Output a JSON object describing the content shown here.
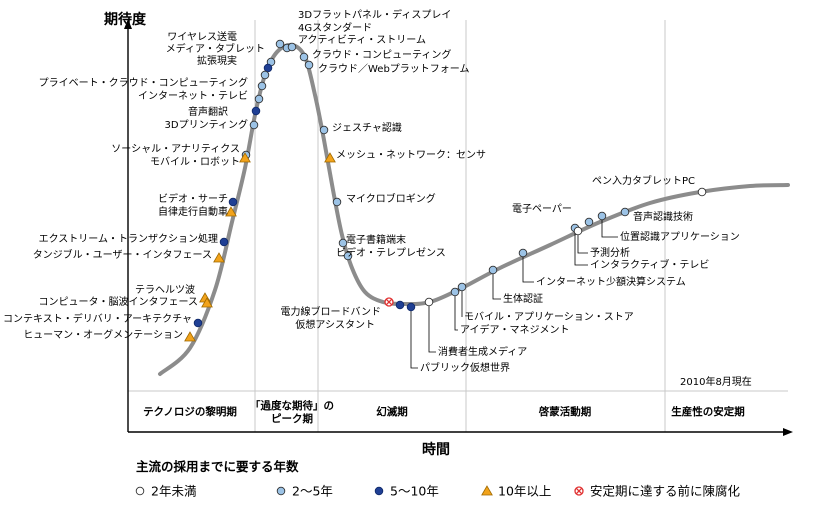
{
  "chart_data": {
    "type": "scatter",
    "ylabel": "期待度",
    "xlabel": "時間",
    "date_note": "2010年8月現在",
    "phases": [
      "テクノロジの黎明期",
      "「過度な期待」の\nピーク期",
      "幻滅期",
      "啓蒙活動期",
      "生産性の安定期"
    ],
    "legend_title": "主流の採用までに要する年数",
    "legend": [
      {
        "key": "lt2",
        "label": "2年未満"
      },
      {
        "key": "y2_5",
        "label": "2〜5年"
      },
      {
        "key": "y5_10",
        "label": "5〜10年"
      },
      {
        "key": "gt10",
        "label": "10年以上"
      },
      {
        "key": "obsolete",
        "label": "安定期に達する前に陳腐化"
      }
    ],
    "colors": {
      "lt2": "#ffffff",
      "y2_5": "#9cc3e6",
      "y5_10": "#1f3f94",
      "gt10": "#f2a31b",
      "obsolete_stroke": "#e03030",
      "curve": "#8c8c8c",
      "axis": "#000000",
      "divider": "#c8c8c8"
    },
    "points": [
      {
        "name": "3Dフラットパネル・ディスプレイ",
        "cat": "y2_5"
      },
      {
        "name": "4Gスタンダード",
        "cat": "y2_5"
      },
      {
        "name": "アクティビティ・ストリーム",
        "cat": "y2_5"
      },
      {
        "name": "クラウド・コンピューティング",
        "cat": "y2_5"
      },
      {
        "name": "クラウド／Webプラットフォーム",
        "cat": "y2_5"
      },
      {
        "name": "ワイヤレス送電",
        "cat": "y2_5"
      },
      {
        "name": "メディア・タブレット",
        "cat": "y5_10"
      },
      {
        "name": "拡張現実",
        "cat": "y2_5"
      },
      {
        "name": "プライベート・クラウド・コンピューティング",
        "cat": "y2_5"
      },
      {
        "name": "インターネット・テレビ",
        "cat": "y2_5"
      },
      {
        "name": "音声翻訳",
        "cat": "y5_10"
      },
      {
        "name": "3Dプリンティング",
        "cat": "y2_5"
      },
      {
        "name": "ソーシャル・アナリティクス",
        "cat": "y2_5"
      },
      {
        "name": "モバイル・ロボット",
        "cat": "gt10"
      },
      {
        "name": "ビデオ・サーチ",
        "cat": "y5_10"
      },
      {
        "name": "自律走行自動車",
        "cat": "gt10"
      },
      {
        "name": "エクストリーム・トランザクション処理",
        "cat": "y5_10"
      },
      {
        "name": "タンジブル・ユーザー・インタフェース",
        "cat": "gt10"
      },
      {
        "name": "テラヘルツ波",
        "cat": "gt10"
      },
      {
        "name": "コンピュータ・脳波インタフェース",
        "cat": "gt10"
      },
      {
        "name": "コンテキスト・デリバリ・アーキテクチャ",
        "cat": "y5_10"
      },
      {
        "name": "ヒューマン・オーグメンテーション",
        "cat": "gt10"
      },
      {
        "name": "ジェスチャ認識",
        "cat": "y2_5"
      },
      {
        "name": "メッシュ・ネットワーク：センサ",
        "cat": "gt10"
      },
      {
        "name": "マイクロブロギング",
        "cat": "y2_5"
      },
      {
        "name": "電子書籍端末",
        "cat": "y2_5"
      },
      {
        "name": "ビデオ・テレプレゼンス",
        "cat": "y2_5"
      },
      {
        "name": "電力線ブロードバンド",
        "cat": "obsolete"
      },
      {
        "name": "仮想アシスタント",
        "cat": "y5_10"
      },
      {
        "name": "パブリック仮想世界",
        "cat": "y5_10"
      },
      {
        "name": "消費者生成メディア",
        "cat": "lt2"
      },
      {
        "name": "アイデア・マネジメント",
        "cat": "y2_5"
      },
      {
        "name": "モバイル・アプリケーション・ストア",
        "cat": "y2_5"
      },
      {
        "name": "生体認証",
        "cat": "y2_5"
      },
      {
        "name": "インターネット少額決算システム",
        "cat": "y2_5"
      },
      {
        "name": "インタラクティブ・テレビ",
        "cat": "y2_5"
      },
      {
        "name": "予測分析",
        "cat": "lt2"
      },
      {
        "name": "位置認識アプリケーション",
        "cat": "y2_5"
      },
      {
        "name": "電子ペーパー",
        "cat": "y2_5"
      },
      {
        "name": "音声認識技術",
        "cat": "y2_5"
      },
      {
        "name": "ペン入力タブレットPC",
        "cat": "lt2"
      }
    ]
  }
}
